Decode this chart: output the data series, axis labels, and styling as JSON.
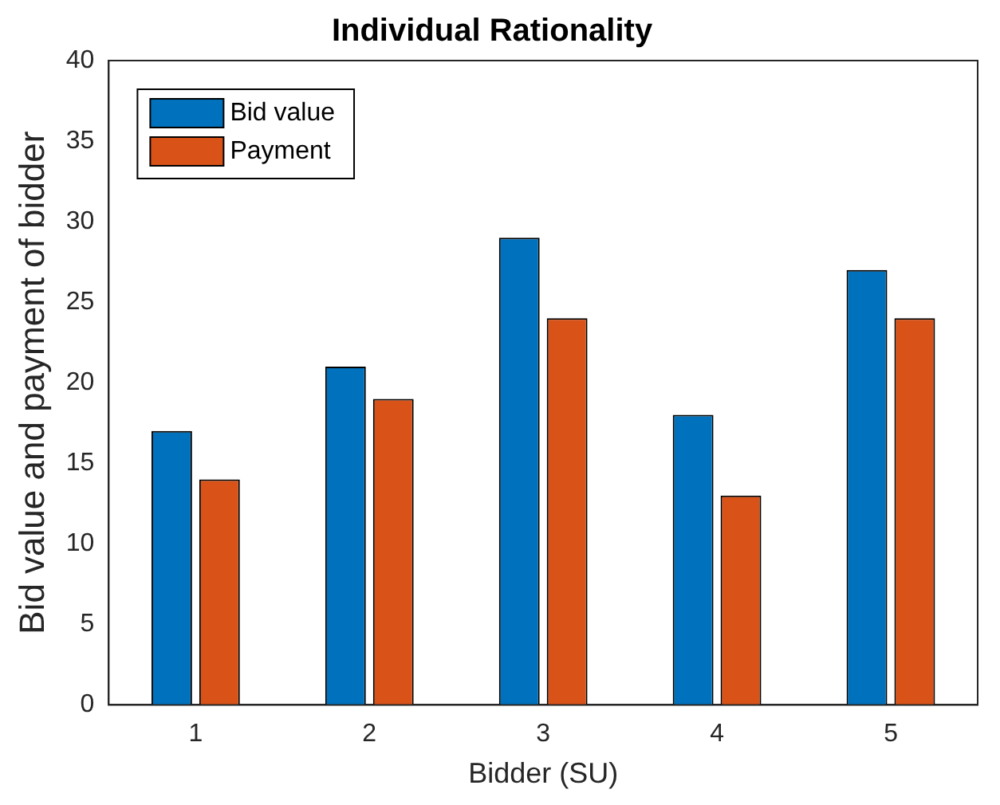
{
  "chart_data": {
    "type": "bar",
    "title": "Individual Rationality",
    "xlabel": "Bidder (SU)",
    "ylabel": "Bid value and payment of bidder",
    "categories": [
      "1",
      "2",
      "3",
      "4",
      "5"
    ],
    "series": [
      {
        "name": "Bid value",
        "color": "#0072bd",
        "values": [
          17,
          21,
          29,
          18,
          27
        ]
      },
      {
        "name": "Payment",
        "color": "#d95319",
        "values": [
          14,
          19,
          24,
          13,
          24
        ]
      }
    ],
    "ylim": [
      0,
      40
    ],
    "yticks": [
      0,
      5,
      10,
      15,
      20,
      25,
      30,
      35,
      40
    ],
    "grid": false,
    "legend": "top left"
  }
}
